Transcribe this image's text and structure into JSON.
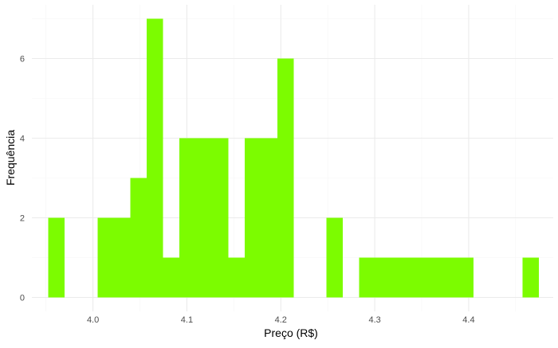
{
  "chart_data": {
    "type": "bar",
    "subtype": "histogram",
    "title": "",
    "xlabel": "Preço (R$)",
    "ylabel": "Frequência",
    "xlim": [
      3.935,
      4.49
    ],
    "ylim": [
      -0.35,
      7.35
    ],
    "x_ticks": [
      4.0,
      4.1,
      4.2,
      4.3,
      4.4
    ],
    "x_tick_labels": [
      "4.0",
      "4.1",
      "4.2",
      "4.3",
      "4.4"
    ],
    "y_ticks": [
      0,
      2,
      4,
      6
    ],
    "y_tick_labels": [
      "0",
      "2",
      "4",
      "6"
    ],
    "grid": true,
    "legend": "none",
    "bin_width": 0.01741,
    "bars": [
      {
        "x0": 3.9526,
        "x1": 3.97,
        "count": 2
      },
      {
        "x0": 4.0048,
        "x1": 4.0222,
        "count": 2
      },
      {
        "x0": 4.0222,
        "x1": 4.0396,
        "count": 2
      },
      {
        "x0": 4.0396,
        "x1": 4.057,
        "count": 3
      },
      {
        "x0": 4.057,
        "x1": 4.0744,
        "count": 7
      },
      {
        "x0": 4.0744,
        "x1": 4.0918,
        "count": 1
      },
      {
        "x0": 4.0918,
        "x1": 4.1092,
        "count": 4
      },
      {
        "x0": 4.1092,
        "x1": 4.1266,
        "count": 4
      },
      {
        "x0": 4.1266,
        "x1": 4.144,
        "count": 4
      },
      {
        "x0": 4.144,
        "x1": 4.1614,
        "count": 1
      },
      {
        "x0": 4.1614,
        "x1": 4.1788,
        "count": 4
      },
      {
        "x0": 4.1788,
        "x1": 4.1962,
        "count": 4
      },
      {
        "x0": 4.1962,
        "x1": 4.2136,
        "count": 6
      },
      {
        "x0": 4.2484,
        "x1": 4.2658,
        "count": 2
      },
      {
        "x0": 4.2832,
        "x1": 4.3006,
        "count": 1
      },
      {
        "x0": 4.3006,
        "x1": 4.318,
        "count": 1
      },
      {
        "x0": 4.318,
        "x1": 4.3354,
        "count": 1
      },
      {
        "x0": 4.3354,
        "x1": 4.3528,
        "count": 1
      },
      {
        "x0": 4.3528,
        "x1": 4.3702,
        "count": 1
      },
      {
        "x0": 4.3702,
        "x1": 4.3876,
        "count": 1
      },
      {
        "x0": 4.3876,
        "x1": 4.405,
        "count": 1
      },
      {
        "x0": 4.4572,
        "x1": 4.4746,
        "count": 1
      }
    ],
    "colors": {
      "bar_fill": "#7cfc00",
      "grid_major": "#ebebeb",
      "grid_minor": "#f5f5f5",
      "tick_text": "#4d4d4d",
      "axis_title": "#000000"
    }
  }
}
